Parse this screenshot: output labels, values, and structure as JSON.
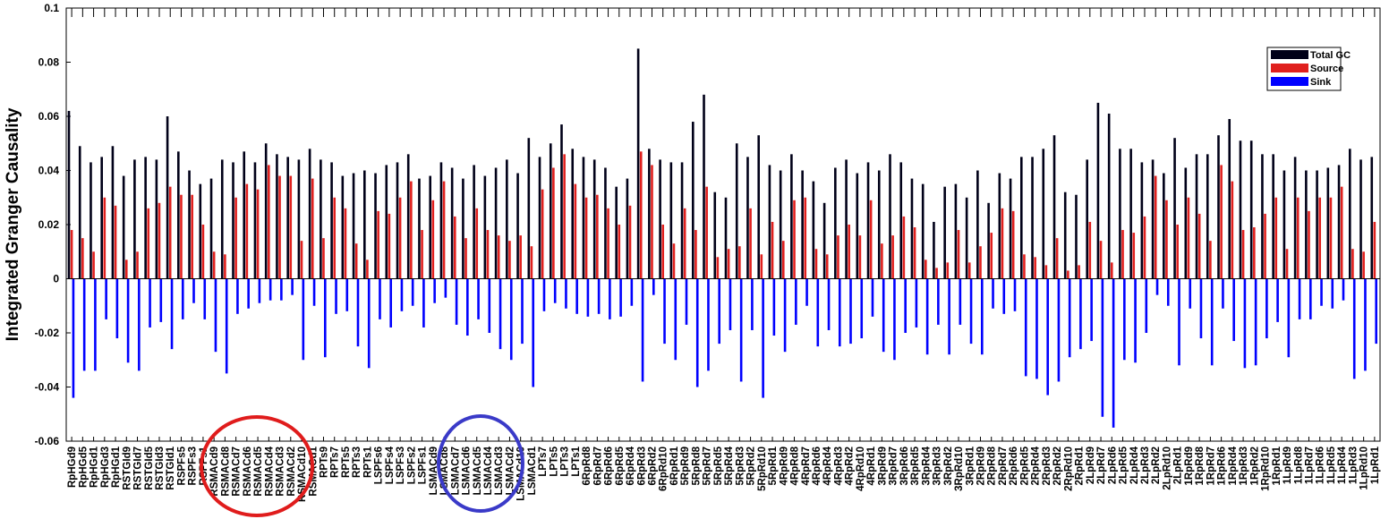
{
  "chart_data": {
    "type": "bar",
    "y_label": "Integrated Granger Causality",
    "categories": [
      "RpHGd9",
      "RpHGd5",
      "RpHGd1",
      "RpHGd3",
      "RpHGd1",
      "RSTGId9",
      "RSTGId7",
      "RSTGId5",
      "RSTGId3",
      "RSTGId1",
      "RSPFs5",
      "RSPFs3",
      "RSPFs1",
      "RSMACd9",
      "RSMACd8",
      "RSMACd7",
      "RSMACd6",
      "RSMACd5",
      "RSMACd4",
      "RSMACd3",
      "RSMACd2",
      "RSMACd10",
      "RSMACd1",
      "RPTs9",
      "RPTs7",
      "RPTs5",
      "RPTs3",
      "RPTs1",
      "LSPFs6",
      "LSPFs4",
      "LSPFs3",
      "LSPFs2",
      "LSPFs1",
      "LSMACd9",
      "LSMACd8",
      "LSMACd7",
      "LSMACd6",
      "LSMACd5",
      "LSMACd4",
      "LSMACd3",
      "LSMACd2",
      "LSMACd10",
      "LSMACd1",
      "LPTs7",
      "LPTs5",
      "LPTs3",
      "LPTs1",
      "6RpRd8",
      "6RpRd7",
      "6RpRd6",
      "6RpRd5",
      "6RpRd4",
      "6RpRd3",
      "6RpRd2",
      "6RpRd10",
      "6RpRd1",
      "5RpRd9",
      "5RpRd8",
      "5RpRd7",
      "5RpRd5",
      "5RpRd4",
      "5RpRd3",
      "5RpRd2",
      "5RpRd10",
      "5RpRd1",
      "4RpRd9",
      "4RpRd8",
      "4RpRd7",
      "4RpRd6",
      "4RpRd4",
      "4RpRd3",
      "4RpRd2",
      "4RpRd10",
      "4RpRd1",
      "3RpRd9",
      "3RpRd7",
      "3RpRd6",
      "3RpRd5",
      "3RpRd4",
      "3RpRd3",
      "3RpRd2",
      "3RpRd10",
      "3RpRd1",
      "2RpRd9",
      "2RpRd8",
      "2RpRd7",
      "2RpRd6",
      "2RpRd5",
      "2RpRd4",
      "2RpRd3",
      "2RpRd2",
      "2RpRd10",
      "2RpRd1",
      "2LpRd9",
      "2LpRd7",
      "2LpRd6",
      "2LpRd5",
      "2LpRd4",
      "2LpRd3",
      "2LpRd2",
      "2LpRd10",
      "2LpRd1",
      "1RpRd9",
      "1RpRd8",
      "1RpRd7",
      "1RpRd6",
      "1RpRd4",
      "1RpRd3",
      "1RpRd2",
      "1RpRd10",
      "1RpRd1",
      "1LpRd9",
      "1LpRd8",
      "1LpRd7",
      "1LpRd6",
      "1LpRd5",
      "1LpRd4",
      "1LpRd3",
      "1LpRd10",
      "1LpRd1"
    ],
    "series": [
      {
        "name": "Total GC",
        "color": "#000018",
        "values": [
          0.062,
          0.049,
          0.043,
          0.045,
          0.049,
          0.038,
          0.044,
          0.045,
          0.044,
          0.06,
          0.047,
          0.04,
          0.035,
          0.037,
          0.044,
          0.043,
          0.047,
          0.043,
          0.05,
          0.046,
          0.045,
          0.044,
          0.048,
          0.044,
          0.043,
          0.038,
          0.039,
          0.04,
          0.039,
          0.042,
          0.043,
          0.046,
          0.037,
          0.038,
          0.043,
          0.041,
          0.037,
          0.042,
          0.038,
          0.041,
          0.044,
          0.039,
          0.052,
          0.045,
          0.05,
          0.057,
          0.048,
          0.045,
          0.044,
          0.041,
          0.034,
          0.037,
          0.085,
          0.048,
          0.044,
          0.043,
          0.043,
          0.058,
          0.068,
          0.032,
          0.03,
          0.05,
          0.045,
          0.053,
          0.042,
          0.04,
          0.046,
          0.04,
          0.036,
          0.028,
          0.041,
          0.044,
          0.039,
          0.043,
          0.04,
          0.046,
          0.043,
          0.037,
          0.035,
          0.021,
          0.034,
          0.035,
          0.03,
          0.04,
          0.028,
          0.039,
          0.037,
          0.045,
          0.045,
          0.048,
          0.053,
          0.032,
          0.031,
          0.044,
          0.065,
          0.061,
          0.048,
          0.048,
          0.043,
          0.044,
          0.039,
          0.052,
          0.041,
          0.046,
          0.046,
          0.053,
          0.059,
          0.051,
          0.051,
          0.046,
          0.046,
          0.04,
          0.045,
          0.04,
          0.04,
          0.041,
          0.042,
          0.048,
          0.044,
          0.045
        ]
      },
      {
        "name": "Source",
        "color": "#e0201e",
        "values": [
          0.018,
          0.015,
          0.01,
          0.03,
          0.027,
          0.007,
          0.01,
          0.026,
          0.028,
          0.034,
          0.031,
          0.031,
          0.02,
          0.01,
          0.009,
          0.03,
          0.035,
          0.033,
          0.042,
          0.038,
          0.038,
          0.014,
          0.037,
          0.015,
          0.03,
          0.026,
          0.013,
          0.007,
          0.025,
          0.024,
          0.03,
          0.036,
          0.018,
          0.029,
          0.036,
          0.023,
          0.015,
          0.026,
          0.018,
          0.016,
          0.014,
          0.016,
          0.012,
          0.033,
          0.041,
          0.046,
          0.035,
          0.03,
          0.031,
          0.026,
          0.02,
          0.027,
          0.047,
          0.042,
          0.02,
          0.013,
          0.026,
          0.018,
          0.034,
          0.008,
          0.011,
          0.012,
          0.026,
          0.009,
          0.021,
          0.014,
          0.029,
          0.03,
          0.011,
          0.009,
          0.016,
          0.02,
          0.016,
          0.029,
          0.013,
          0.016,
          0.023,
          0.019,
          0.007,
          0.004,
          0.006,
          0.018,
          0.006,
          0.012,
          0.017,
          0.026,
          0.025,
          0.009,
          0.008,
          0.005,
          0.015,
          0.003,
          0.005,
          0.021,
          0.014,
          0.006,
          0.018,
          0.017,
          0.023,
          0.038,
          0.029,
          0.02,
          0.03,
          0.024,
          0.014,
          0.042,
          0.036,
          0.018,
          0.019,
          0.024,
          0.03,
          0.011,
          0.03,
          0.025,
          0.03,
          0.03,
          0.034,
          0.011,
          0.01,
          0.021
        ]
      },
      {
        "name": "Sink",
        "color": "#0000ff",
        "values": [
          -0.044,
          -0.034,
          -0.034,
          -0.015,
          -0.022,
          -0.031,
          -0.034,
          -0.018,
          -0.016,
          -0.026,
          -0.015,
          -0.009,
          -0.015,
          -0.027,
          -0.035,
          -0.013,
          -0.011,
          -0.009,
          -0.008,
          -0.008,
          -0.006,
          -0.03,
          -0.01,
          -0.029,
          -0.013,
          -0.012,
          -0.025,
          -0.033,
          -0.015,
          -0.018,
          -0.012,
          -0.01,
          -0.018,
          -0.009,
          -0.007,
          -0.017,
          -0.021,
          -0.015,
          -0.02,
          -0.026,
          -0.03,
          -0.024,
          -0.04,
          -0.012,
          -0.009,
          -0.011,
          -0.013,
          -0.014,
          -0.013,
          -0.015,
          -0.014,
          -0.01,
          -0.038,
          -0.006,
          -0.024,
          -0.03,
          -0.017,
          -0.04,
          -0.034,
          -0.024,
          -0.019,
          -0.038,
          -0.019,
          -0.044,
          -0.021,
          -0.027,
          -0.017,
          -0.01,
          -0.025,
          -0.019,
          -0.025,
          -0.024,
          -0.022,
          -0.014,
          -0.027,
          -0.03,
          -0.02,
          -0.018,
          -0.028,
          -0.017,
          -0.028,
          -0.017,
          -0.024,
          -0.028,
          -0.011,
          -0.013,
          -0.012,
          -0.036,
          -0.037,
          -0.043,
          -0.038,
          -0.029,
          -0.026,
          -0.023,
          -0.051,
          -0.055,
          -0.03,
          -0.031,
          -0.02,
          -0.006,
          -0.01,
          -0.032,
          -0.011,
          -0.022,
          -0.032,
          -0.011,
          -0.023,
          -0.033,
          -0.032,
          -0.022,
          -0.016,
          -0.029,
          -0.015,
          -0.015,
          -0.01,
          -0.011,
          -0.008,
          -0.037,
          -0.034,
          -0.024
        ]
      }
    ],
    "ylim": [
      -0.06,
      0.1
    ],
    "yticks": [
      -0.06,
      -0.04,
      -0.02,
      0,
      0.02,
      0.04,
      0.06,
      0.08,
      0.1
    ],
    "legend": "upper right"
  }
}
